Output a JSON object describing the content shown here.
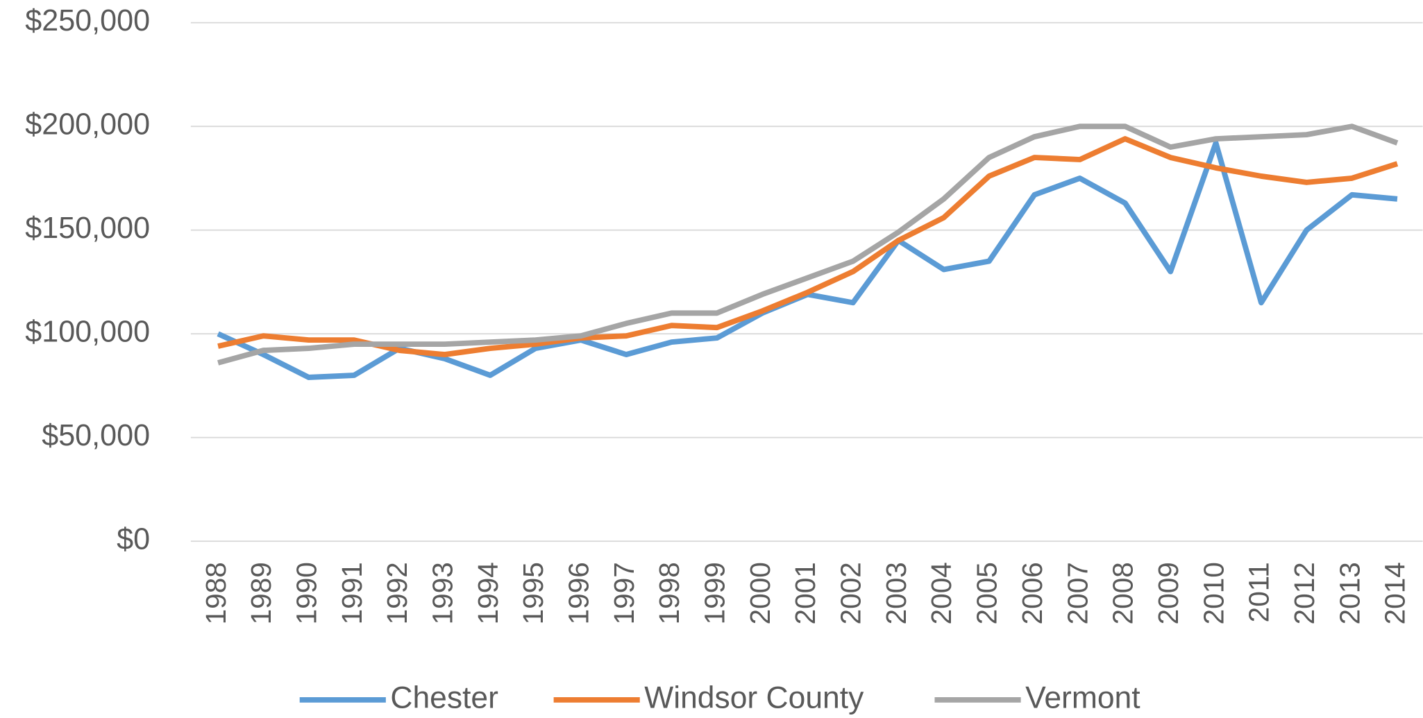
{
  "chart_data": {
    "type": "line",
    "categories": [
      "1988",
      "1989",
      "1990",
      "1991",
      "1992",
      "1993",
      "1994",
      "1995",
      "1996",
      "1997",
      "1998",
      "1999",
      "2000",
      "2001",
      "2002",
      "2003",
      "2004",
      "2005",
      "2006",
      "2007",
      "2008",
      "2009",
      "2010",
      "2011",
      "2012",
      "2013",
      "2014"
    ],
    "series": [
      {
        "name": "Chester",
        "color": "#5b9bd5",
        "values": [
          100000,
          90000,
          79000,
          80000,
          93000,
          88000,
          80000,
          93000,
          97000,
          90000,
          96000,
          98000,
          110000,
          119000,
          115000,
          145000,
          131000,
          135000,
          167000,
          175000,
          163000,
          130000,
          192000,
          115000,
          150000,
          167000,
          165000
        ]
      },
      {
        "name": "Windsor County",
        "color": "#ed7d31",
        "values": [
          94000,
          99000,
          97000,
          97000,
          92000,
          90000,
          93000,
          95000,
          98000,
          99000,
          104000,
          103000,
          111000,
          120000,
          130000,
          145000,
          156000,
          176000,
          185000,
          184000,
          194000,
          185000,
          180000,
          176000,
          173000,
          175000,
          182000
        ]
      },
      {
        "name": "Vermont",
        "color": "#a5a5a5",
        "values": [
          86000,
          92000,
          93000,
          95000,
          95000,
          95000,
          96000,
          97000,
          99000,
          105000,
          110000,
          110000,
          119000,
          127000,
          135000,
          149000,
          165000,
          185000,
          195000,
          200000,
          200000,
          190000,
          194000,
          195000,
          196000,
          200000,
          192000
        ]
      }
    ],
    "ylim": [
      0,
      250000
    ],
    "yticks": [
      {
        "value": 0,
        "label": "$0"
      },
      {
        "value": 50000,
        "label": "$50,000"
      },
      {
        "value": 100000,
        "label": "$100,000"
      },
      {
        "value": 150000,
        "label": "$150,000"
      },
      {
        "value": 200000,
        "label": "$200,000"
      },
      {
        "value": 250000,
        "label": "$250,000"
      }
    ],
    "grid": true,
    "legend": "bottom"
  }
}
